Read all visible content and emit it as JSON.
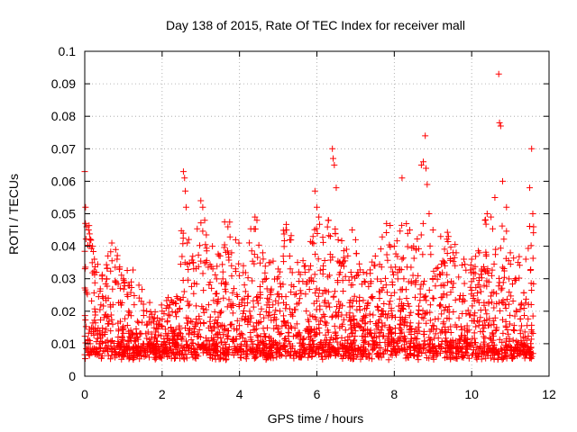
{
  "chart_data": {
    "type": "scatter",
    "title": "Day 138 of 2015, Rate Of TEC Index for receiver mall",
    "xlabel": "GPS time / hours",
    "ylabel": "ROTI / TECUs",
    "xlim": [
      0,
      12
    ],
    "ylim": [
      0,
      0.1
    ],
    "xticks": [
      0,
      2,
      4,
      6,
      8,
      10,
      12
    ],
    "xtick_labels": [
      "0",
      "2",
      "4",
      "6",
      "8",
      "10",
      "12"
    ],
    "yticks": [
      0,
      0.01,
      0.02,
      0.03,
      0.04,
      0.05,
      0.06,
      0.07,
      0.08,
      0.09,
      0.1
    ],
    "ytick_labels": [
      "0",
      "0.01",
      "0.02",
      "0.03",
      "0.04",
      "0.05",
      "0.06",
      "0.07",
      "0.08",
      "0.09",
      "0.1"
    ],
    "grid": true,
    "marker": "+",
    "marker_color": "#ff0000",
    "data_extent_x": [
      0,
      11.6
    ],
    "series": [
      {
        "points": [
          [
            0.0,
            0.063
          ],
          [
            0.02,
            0.052
          ],
          [
            0.05,
            0.046
          ],
          [
            0.1,
            0.045
          ],
          [
            0.15,
            0.042
          ],
          [
            0.2,
            0.04
          ],
          [
            0.25,
            0.036
          ],
          [
            0.3,
            0.032
          ],
          [
            0.45,
            0.03
          ],
          [
            0.6,
            0.037
          ],
          [
            0.7,
            0.041
          ],
          [
            0.8,
            0.039
          ],
          [
            0.9,
            0.033
          ],
          [
            1.0,
            0.03
          ],
          [
            1.2,
            0.029
          ],
          [
            1.4,
            0.028
          ],
          [
            1.6,
            0.02
          ],
          [
            1.8,
            0.018
          ],
          [
            2.0,
            0.02
          ],
          [
            2.2,
            0.022
          ],
          [
            2.4,
            0.024
          ],
          [
            2.55,
            0.063
          ],
          [
            2.58,
            0.061
          ],
          [
            2.6,
            0.057
          ],
          [
            2.62,
            0.052
          ],
          [
            2.65,
            0.041
          ],
          [
            2.8,
            0.035
          ],
          [
            3.0,
            0.054
          ],
          [
            3.05,
            0.052
          ],
          [
            3.1,
            0.048
          ],
          [
            3.3,
            0.04
          ],
          [
            3.5,
            0.037
          ],
          [
            3.7,
            0.046
          ],
          [
            3.9,
            0.042
          ],
          [
            4.1,
            0.034
          ],
          [
            4.4,
            0.049
          ],
          [
            4.45,
            0.048
          ],
          [
            4.6,
            0.038
          ],
          [
            4.8,
            0.035
          ],
          [
            5.0,
            0.033
          ],
          [
            5.2,
            0.045
          ],
          [
            5.3,
            0.042
          ],
          [
            5.5,
            0.035
          ],
          [
            5.7,
            0.034
          ],
          [
            5.9,
            0.043
          ],
          [
            5.95,
            0.057
          ],
          [
            6.0,
            0.052
          ],
          [
            6.05,
            0.049
          ],
          [
            6.3,
            0.048
          ],
          [
            6.4,
            0.07
          ],
          [
            6.42,
            0.067
          ],
          [
            6.45,
            0.065
          ],
          [
            6.5,
            0.058
          ],
          [
            6.55,
            0.042
          ],
          [
            6.8,
            0.037
          ],
          [
            7.0,
            0.042
          ],
          [
            7.2,
            0.032
          ],
          [
            7.5,
            0.034
          ],
          [
            7.8,
            0.047
          ],
          [
            8.0,
            0.04
          ],
          [
            8.2,
            0.061
          ],
          [
            8.4,
            0.045
          ],
          [
            8.5,
            0.04
          ],
          [
            8.7,
            0.065
          ],
          [
            8.75,
            0.066
          ],
          [
            8.8,
            0.074
          ],
          [
            8.82,
            0.064
          ],
          [
            8.85,
            0.059
          ],
          [
            8.9,
            0.05
          ],
          [
            9.0,
            0.045
          ],
          [
            9.2,
            0.043
          ],
          [
            9.4,
            0.043
          ],
          [
            9.6,
            0.038
          ],
          [
            9.8,
            0.036
          ],
          [
            10.0,
            0.036
          ],
          [
            10.2,
            0.038
          ],
          [
            10.4,
            0.05
          ],
          [
            10.5,
            0.049
          ],
          [
            10.6,
            0.055
          ],
          [
            10.7,
            0.093
          ],
          [
            10.72,
            0.078
          ],
          [
            10.75,
            0.077
          ],
          [
            10.8,
            0.06
          ],
          [
            10.9,
            0.052
          ],
          [
            11.0,
            0.038
          ],
          [
            11.2,
            0.035
          ],
          [
            11.4,
            0.036
          ],
          [
            11.5,
            0.058
          ],
          [
            11.55,
            0.07
          ],
          [
            11.58,
            0.05
          ],
          [
            11.6,
            0.046
          ]
        ]
      }
    ]
  }
}
